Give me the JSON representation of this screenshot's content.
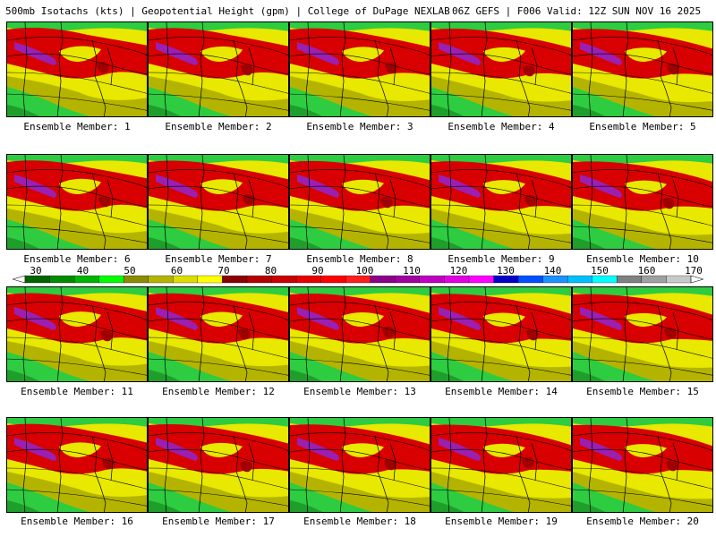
{
  "header": {
    "left": "500mb Isotachs (kts) | Geopotential Height (gpm) | College of DuPage NEXLAB",
    "right": "06Z GEFS | F006 Valid: 12Z SUN NOV 16 2025"
  },
  "members": [
    {
      "label": "Ensemble Member: 1"
    },
    {
      "label": "Ensemble Member: 2"
    },
    {
      "label": "Ensemble Member: 3"
    },
    {
      "label": "Ensemble Member: 4"
    },
    {
      "label": "Ensemble Member: 5"
    },
    {
      "label": "Ensemble Member: 6"
    },
    {
      "label": "Ensemble Member: 7"
    },
    {
      "label": "Ensemble Member: 8"
    },
    {
      "label": "Ensemble Member: 9"
    },
    {
      "label": "Ensemble Member: 10"
    },
    {
      "label": "Ensemble Member: 11"
    },
    {
      "label": "Ensemble Member: 12"
    },
    {
      "label": "Ensemble Member: 13"
    },
    {
      "label": "Ensemble Member: 14"
    },
    {
      "label": "Ensemble Member: 15"
    },
    {
      "label": "Ensemble Member: 16"
    },
    {
      "label": "Ensemble Member: 17"
    },
    {
      "label": "Ensemble Member: 18"
    },
    {
      "label": "Ensemble Member: 19"
    },
    {
      "label": "Ensemble Member: 20"
    }
  ],
  "colorbar": {
    "ticks": [
      "30",
      "40",
      "50",
      "60",
      "70",
      "80",
      "90",
      "100",
      "110",
      "120",
      "130",
      "140",
      "150",
      "160",
      "170"
    ],
    "colors": [
      "#006400",
      "#008c00",
      "#00b400",
      "#00ff00",
      "#8c8c00",
      "#b4b400",
      "#dcdc00",
      "#ffff00",
      "#8b0000",
      "#b40000",
      "#c80000",
      "#e60000",
      "#ff0000",
      "#ff1e1e",
      "#8b008b",
      "#a000a0",
      "#c000c0",
      "#e000e0",
      "#ff00ff",
      "#0000c8",
      "#0050ff",
      "#1e90ff",
      "#00bfff",
      "#00ffff",
      "#808080",
      "#a0a0a0",
      "#c8c8c8"
    ]
  },
  "map_colors": {
    "green": "#2ecc40",
    "dark_green": "#1f9e2c",
    "olive": "#b4b400",
    "yellow": "#e8e800",
    "dark_red": "#a00000",
    "red": "#d80000",
    "purple": "#9b1fb0"
  }
}
